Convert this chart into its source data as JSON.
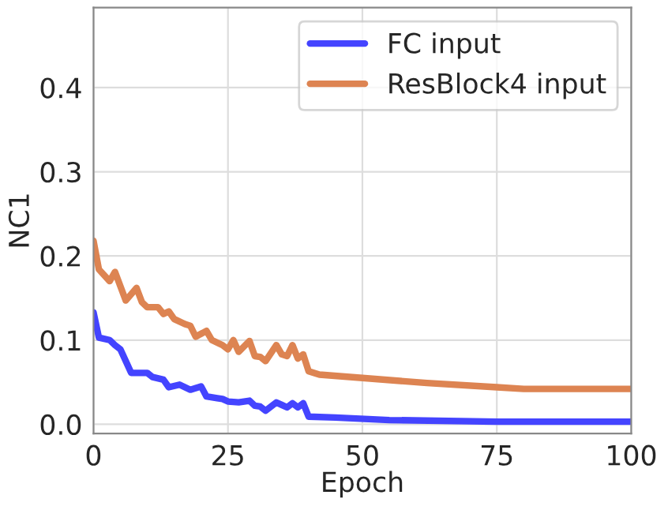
{
  "chart_data": {
    "type": "line",
    "xlabel": "Epoch",
    "ylabel": "NC1",
    "xlim": [
      0,
      100
    ],
    "xticks": [
      0,
      25,
      50,
      75,
      100
    ],
    "ylim": [
      -0.011,
      0.495
    ],
    "yticks": [
      {
        "value": 0,
        "label": "0.0"
      },
      0.1,
      0.2,
      0.3,
      0.4
    ],
    "grid": true,
    "legend": "top right",
    "series": [
      {
        "name": "FC input",
        "color": "#4444ff",
        "x": [
          0,
          1,
          3,
          4,
          5,
          7,
          10,
          11,
          13,
          14,
          16,
          18,
          20,
          21,
          23,
          24,
          25,
          27,
          29,
          30,
          31,
          32,
          34,
          35,
          36,
          37,
          38,
          39,
          40,
          45,
          55,
          75,
          100
        ],
        "values": [
          0.133,
          0.103,
          0.1,
          0.094,
          0.089,
          0.061,
          0.061,
          0.056,
          0.053,
          0.044,
          0.047,
          0.041,
          0.045,
          0.033,
          0.031,
          0.03,
          0.027,
          0.026,
          0.028,
          0.022,
          0.021,
          0.016,
          0.026,
          0.023,
          0.02,
          0.025,
          0.02,
          0.025,
          0.009,
          0.008,
          0.005,
          0.003,
          0.003
        ]
      },
      {
        "name": "ResBlock4 input",
        "color": "#dd8452",
        "x": [
          0,
          1,
          3,
          4,
          6,
          8,
          9,
          10,
          12,
          13,
          14,
          15,
          17,
          18,
          19,
          21,
          22,
          24,
          25,
          26,
          27,
          29,
          30,
          31,
          32,
          34,
          35,
          36,
          37,
          38,
          39,
          40,
          42,
          50,
          62,
          75,
          80,
          100
        ],
        "values": [
          0.218,
          0.184,
          0.17,
          0.181,
          0.147,
          0.162,
          0.145,
          0.139,
          0.139,
          0.131,
          0.134,
          0.125,
          0.119,
          0.117,
          0.104,
          0.111,
          0.1,
          0.094,
          0.089,
          0.1,
          0.086,
          0.099,
          0.081,
          0.08,
          0.075,
          0.094,
          0.083,
          0.081,
          0.094,
          0.078,
          0.083,
          0.063,
          0.059,
          0.055,
          0.049,
          0.044,
          0.042,
          0.042
        ]
      }
    ]
  }
}
